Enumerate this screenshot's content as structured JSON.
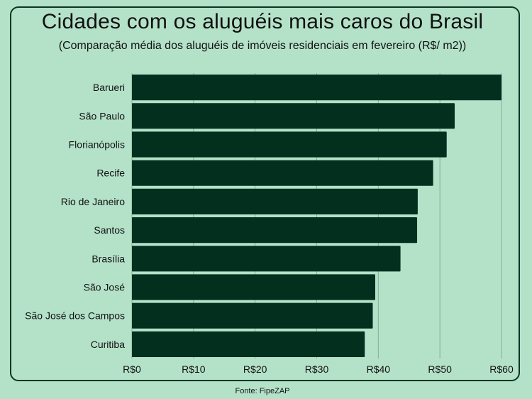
{
  "chart_data": {
    "type": "bar",
    "orientation": "horizontal",
    "title": "Cidades com os aluguéis mais caros do Brasil",
    "subtitle": "(Comparação média dos aluguéis de imóveis residenciais em fevereiro (R$/ m2))",
    "categories": [
      "Barueri",
      "São Paulo",
      "Florianópolis",
      "Recife",
      "Rio de Janeiro",
      "Santos",
      "Brasília",
      "São José",
      "São José dos Campos",
      "Curitiba"
    ],
    "values": [
      60.0,
      52.4,
      51.1,
      48.9,
      46.4,
      46.3,
      43.6,
      39.5,
      39.1,
      37.8
    ],
    "xlim": [
      0,
      60
    ],
    "xticks": [
      "R$0",
      "R$10",
      "R$20",
      "R$30",
      "R$40",
      "R$50",
      "R$60"
    ],
    "grid": "vertical",
    "source": "Fonte: FipeZAP"
  },
  "colors": {
    "background": "#b4e2c9",
    "bar": "#03301e",
    "grid": "#7fb099",
    "text": "#111111"
  }
}
